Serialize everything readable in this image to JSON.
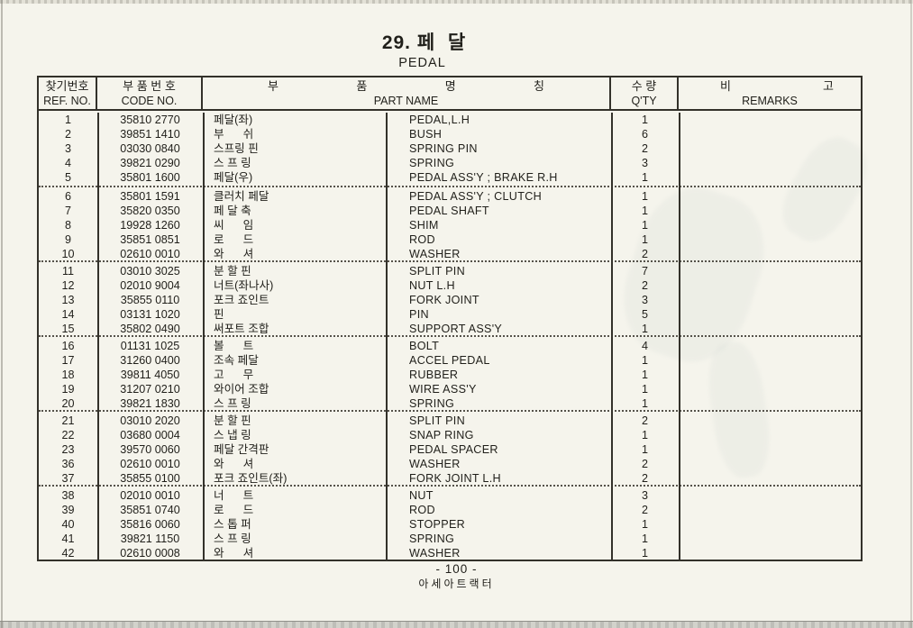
{
  "page": {
    "section_number": "29.",
    "title_kr": "페  달",
    "title_en": "PEDAL",
    "page_number": "- 100 -",
    "publisher": "아세아트랙터"
  },
  "table": {
    "headers": {
      "ref_kr": "찾기번호",
      "ref_en": "REF. NO.",
      "code_kr": "부 품 번 호",
      "code_en": "CODE NO.",
      "name_kr_chars": [
        "부",
        "품",
        "명",
        "칭"
      ],
      "name_en": "PART NAME",
      "qty_kr": "수 량",
      "qty_en": "Q'TY",
      "remarks_kr_chars": [
        "비",
        "고"
      ],
      "remarks_en": "REMARKS"
    },
    "groups": [
      [
        {
          "ref": "1",
          "code": "35810 2770",
          "kr": "페달(좌)",
          "en": "PEDAL,L.H",
          "qty": "1",
          "remarks": ""
        },
        {
          "ref": "2",
          "code": "39851 1410",
          "kr": "부      쉬",
          "en": "BUSH",
          "qty": "6",
          "remarks": ""
        },
        {
          "ref": "3",
          "code": "03030 0840",
          "kr": "스프링 핀",
          "en": "SPRING PIN",
          "qty": "2",
          "remarks": ""
        },
        {
          "ref": "4",
          "code": "39821 0290",
          "kr": "스 프 링",
          "en": "SPRING",
          "qty": "3",
          "remarks": ""
        },
        {
          "ref": "5",
          "code": "35801 1600",
          "kr": "페달(우)",
          "en": "PEDAL ASS'Y ; BRAKE R.H",
          "qty": "1",
          "remarks": ""
        }
      ],
      [
        {
          "ref": "6",
          "code": "35801 1591",
          "kr": "클러치 페달",
          "en": "PEDAL ASS'Y ; CLUTCH",
          "qty": "1",
          "remarks": ""
        },
        {
          "ref": "7",
          "code": "35820 0350",
          "kr": "페 달 축",
          "en": "PEDAL SHAFT",
          "qty": "1",
          "remarks": ""
        },
        {
          "ref": "8",
          "code": "19928 1260",
          "kr": "씨      임",
          "en": "SHIM",
          "qty": "1",
          "remarks": ""
        },
        {
          "ref": "9",
          "code": "35851 0851",
          "kr": "로      드",
          "en": "ROD",
          "qty": "1",
          "remarks": ""
        },
        {
          "ref": "10",
          "code": "02610 0010",
          "kr": "와      셔",
          "en": "WASHER",
          "qty": "2",
          "remarks": ""
        }
      ],
      [
        {
          "ref": "11",
          "code": "03010 3025",
          "kr": "분 할 핀",
          "en": "SPLIT PIN",
          "qty": "7",
          "remarks": ""
        },
        {
          "ref": "12",
          "code": "02010 9004",
          "kr": "너트(좌나사)",
          "en": "NUT L.H",
          "qty": "2",
          "remarks": ""
        },
        {
          "ref": "13",
          "code": "35855 0110",
          "kr": "포크 죠인트",
          "en": "FORK JOINT",
          "qty": "3",
          "remarks": ""
        },
        {
          "ref": "14",
          "code": "03131 1020",
          "kr": "핀",
          "en": "PIN",
          "qty": "5",
          "remarks": ""
        },
        {
          "ref": "15",
          "code": "35802 0490",
          "kr": "써포트 조합",
          "en": "SUPPORT ASS'Y",
          "qty": "1",
          "remarks": ""
        }
      ],
      [
        {
          "ref": "16",
          "code": "01131 1025",
          "kr": "볼      트",
          "en": "BOLT",
          "qty": "4",
          "remarks": ""
        },
        {
          "ref": "17",
          "code": "31260 0400",
          "kr": "조속 페달",
          "en": "ACCEL PEDAL",
          "qty": "1",
          "remarks": ""
        },
        {
          "ref": "18",
          "code": "39811 4050",
          "kr": "고      무",
          "en": "RUBBER",
          "qty": "1",
          "remarks": ""
        },
        {
          "ref": "19",
          "code": "31207 0210",
          "kr": "와이어 조합",
          "en": "WIRE ASS'Y",
          "qty": "1",
          "remarks": ""
        },
        {
          "ref": "20",
          "code": "39821 1830",
          "kr": "스 프 링",
          "en": "SPRING",
          "qty": "1",
          "remarks": ""
        }
      ],
      [
        {
          "ref": "21",
          "code": "03010 2020",
          "kr": "분 할 핀",
          "en": "SPLIT PIN",
          "qty": "2",
          "remarks": ""
        },
        {
          "ref": "22",
          "code": "03680 0004",
          "kr": "스 냅 링",
          "en": "SNAP RING",
          "qty": "1",
          "remarks": ""
        },
        {
          "ref": "23",
          "code": "39570 0060",
          "kr": "페달 간격판",
          "en": "PEDAL SPACER",
          "qty": "1",
          "remarks": ""
        },
        {
          "ref": "36",
          "code": "02610 0010",
          "kr": "와      셔",
          "en": "WASHER",
          "qty": "2",
          "remarks": ""
        },
        {
          "ref": "37",
          "code": "35855 0100",
          "kr": "포크 죠인트(좌)",
          "en": "FORK JOINT L.H",
          "qty": "2",
          "remarks": ""
        }
      ],
      [
        {
          "ref": "38",
          "code": "02010 0010",
          "kr": "너      트",
          "en": "NUT",
          "qty": "3",
          "remarks": ""
        },
        {
          "ref": "39",
          "code": "35851 0740",
          "kr": "로      드",
          "en": "ROD",
          "qty": "2",
          "remarks": ""
        },
        {
          "ref": "40",
          "code": "35816 0060",
          "kr": "스 톱 퍼",
          "en": "STOPPER",
          "qty": "1",
          "remarks": ""
        },
        {
          "ref": "41",
          "code": "39821 1150",
          "kr": "스 프 링",
          "en": "SPRING",
          "qty": "1",
          "remarks": ""
        },
        {
          "ref": "42",
          "code": "02610 0008",
          "kr": "와      셔",
          "en": "WASHER",
          "qty": "1",
          "remarks": ""
        }
      ]
    ]
  }
}
